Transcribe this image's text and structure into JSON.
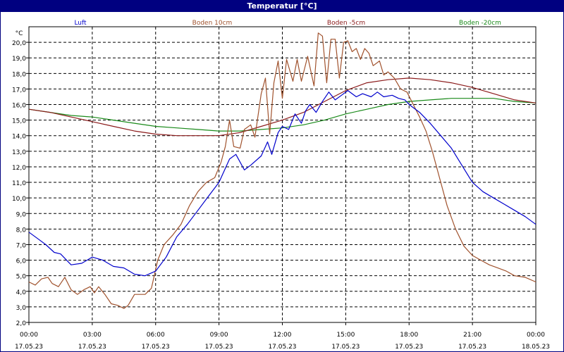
{
  "window": {
    "title": "Temperatur [°C]"
  },
  "chart_data": {
    "type": "line",
    "title": "Temperatur [°C]",
    "y_unit": "°C",
    "ylim": [
      2.0,
      21.0
    ],
    "y_ticks": [
      "2,0",
      "3,0",
      "4,0",
      "5,0",
      "6,0",
      "7,0",
      "8,0",
      "9,0",
      "10,0",
      "11,0",
      "12,0",
      "13,0",
      "14,0",
      "15,0",
      "16,0",
      "17,0",
      "18,0",
      "19,0",
      "20,0"
    ],
    "xlim": [
      0,
      24
    ],
    "x_ticks": [
      {
        "time": "00:00",
        "date": "17.05.23"
      },
      {
        "time": "03:00",
        "date": "17.05.23"
      },
      {
        "time": "06:00",
        "date": "17.05.23"
      },
      {
        "time": "09:00",
        "date": "17.05.23"
      },
      {
        "time": "12:00",
        "date": "17.05.23"
      },
      {
        "time": "15:00",
        "date": "17.05.23"
      },
      {
        "time": "18:00",
        "date": "17.05.23"
      },
      {
        "time": "21:00",
        "date": "17.05.23"
      },
      {
        "time": "00:00",
        "date": "18.05.23"
      }
    ],
    "grid": true,
    "legend_position": "top",
    "series": [
      {
        "name": "Luft",
        "color": "#0000cc",
        "points": [
          [
            0,
            7.8
          ],
          [
            0.5,
            7.3
          ],
          [
            0.8,
            7.0
          ],
          [
            1.2,
            6.5
          ],
          [
            1.5,
            6.4
          ],
          [
            2.0,
            5.7
          ],
          [
            2.5,
            5.8
          ],
          [
            3.0,
            6.2
          ],
          [
            3.5,
            6.0
          ],
          [
            4.0,
            5.6
          ],
          [
            4.5,
            5.5
          ],
          [
            5.0,
            5.1
          ],
          [
            5.5,
            5.0
          ],
          [
            6.0,
            5.3
          ],
          [
            6.5,
            6.2
          ],
          [
            7.0,
            7.5
          ],
          [
            7.5,
            8.3
          ],
          [
            8.0,
            9.2
          ],
          [
            8.5,
            10.1
          ],
          [
            9.0,
            11.0
          ],
          [
            9.5,
            12.5
          ],
          [
            9.8,
            12.8
          ],
          [
            10.2,
            11.8
          ],
          [
            10.5,
            12.1
          ],
          [
            11.0,
            12.7
          ],
          [
            11.3,
            13.6
          ],
          [
            11.5,
            12.8
          ],
          [
            11.8,
            14.2
          ],
          [
            12.0,
            14.6
          ],
          [
            12.3,
            14.4
          ],
          [
            12.6,
            15.4
          ],
          [
            12.9,
            14.8
          ],
          [
            13.1,
            15.6
          ],
          [
            13.3,
            16.0
          ],
          [
            13.6,
            15.5
          ],
          [
            13.9,
            16.2
          ],
          [
            14.2,
            16.8
          ],
          [
            14.5,
            16.3
          ],
          [
            14.8,
            16.6
          ],
          [
            15.1,
            16.9
          ],
          [
            15.5,
            16.5
          ],
          [
            15.8,
            16.7
          ],
          [
            16.2,
            16.5
          ],
          [
            16.5,
            16.8
          ],
          [
            16.8,
            16.5
          ],
          [
            17.2,
            16.6
          ],
          [
            17.5,
            16.4
          ],
          [
            17.8,
            16.3
          ],
          [
            18.0,
            16.0
          ],
          [
            18.5,
            15.5
          ],
          [
            19.0,
            14.8
          ],
          [
            19.5,
            14.0
          ],
          [
            20.0,
            13.2
          ],
          [
            20.5,
            12.1
          ],
          [
            21.0,
            11.0
          ],
          [
            21.5,
            10.4
          ],
          [
            22.0,
            10.0
          ],
          [
            22.5,
            9.6
          ],
          [
            23.0,
            9.2
          ],
          [
            23.5,
            8.8
          ],
          [
            24.0,
            8.3
          ]
        ]
      },
      {
        "name": "Boden 10cm",
        "color": "#a0522d",
        "points": [
          [
            0,
            4.6
          ],
          [
            0.3,
            4.4
          ],
          [
            0.6,
            4.8
          ],
          [
            0.9,
            4.9
          ],
          [
            1.1,
            4.5
          ],
          [
            1.4,
            4.3
          ],
          [
            1.7,
            4.9
          ],
          [
            2.0,
            4.1
          ],
          [
            2.3,
            3.8
          ],
          [
            2.6,
            4.1
          ],
          [
            2.9,
            4.3
          ],
          [
            3.1,
            3.9
          ],
          [
            3.3,
            4.3
          ],
          [
            3.6,
            3.8
          ],
          [
            3.9,
            3.2
          ],
          [
            4.2,
            3.1
          ],
          [
            4.5,
            2.9
          ],
          [
            4.7,
            3.1
          ],
          [
            5.0,
            3.8
          ],
          [
            5.5,
            3.8
          ],
          [
            5.8,
            4.2
          ],
          [
            6.1,
            6.0
          ],
          [
            6.4,
            7.0
          ],
          [
            6.8,
            7.6
          ],
          [
            7.2,
            8.3
          ],
          [
            7.6,
            9.5
          ],
          [
            8.0,
            10.4
          ],
          [
            8.4,
            11.0
          ],
          [
            8.8,
            11.3
          ],
          [
            9.1,
            12.3
          ],
          [
            9.3,
            13.3
          ],
          [
            9.5,
            15.0
          ],
          [
            9.7,
            13.3
          ],
          [
            10.0,
            13.2
          ],
          [
            10.2,
            14.4
          ],
          [
            10.5,
            14.7
          ],
          [
            10.7,
            13.9
          ],
          [
            11.0,
            16.7
          ],
          [
            11.2,
            17.7
          ],
          [
            11.4,
            14.1
          ],
          [
            11.6,
            17.4
          ],
          [
            11.8,
            18.8
          ],
          [
            12.0,
            16.4
          ],
          [
            12.2,
            18.9
          ],
          [
            12.5,
            17.5
          ],
          [
            12.7,
            18.9
          ],
          [
            12.9,
            17.5
          ],
          [
            13.2,
            19.1
          ],
          [
            13.5,
            17.2
          ],
          [
            13.7,
            20.6
          ],
          [
            13.9,
            20.4
          ],
          [
            14.1,
            17.4
          ],
          [
            14.3,
            20.2
          ],
          [
            14.5,
            20.2
          ],
          [
            14.7,
            17.7
          ],
          [
            14.9,
            20.0
          ],
          [
            15.1,
            20.1
          ],
          [
            15.3,
            19.4
          ],
          [
            15.5,
            19.6
          ],
          [
            15.7,
            18.9
          ],
          [
            15.9,
            19.6
          ],
          [
            16.1,
            19.3
          ],
          [
            16.3,
            18.5
          ],
          [
            16.6,
            18.8
          ],
          [
            16.8,
            17.9
          ],
          [
            17.0,
            18.1
          ],
          [
            17.3,
            17.7
          ],
          [
            17.6,
            17.0
          ],
          [
            17.9,
            16.8
          ],
          [
            18.2,
            16.0
          ],
          [
            18.5,
            15.2
          ],
          [
            18.8,
            14.3
          ],
          [
            19.1,
            13.0
          ],
          [
            19.4,
            11.5
          ],
          [
            19.8,
            9.5
          ],
          [
            20.2,
            8.0
          ],
          [
            20.6,
            6.9
          ],
          [
            21.0,
            6.3
          ],
          [
            21.4,
            6.0
          ],
          [
            21.8,
            5.7
          ],
          [
            22.2,
            5.5
          ],
          [
            22.6,
            5.3
          ],
          [
            23.0,
            5.0
          ],
          [
            23.5,
            4.9
          ],
          [
            24.0,
            4.6
          ]
        ]
      },
      {
        "name": "Boden -5cm",
        "color": "#8b1a1a",
        "points": [
          [
            0,
            15.7
          ],
          [
            1,
            15.5
          ],
          [
            2,
            15.2
          ],
          [
            3,
            14.9
          ],
          [
            4,
            14.6
          ],
          [
            5,
            14.3
          ],
          [
            6,
            14.1
          ],
          [
            7,
            14.0
          ],
          [
            8,
            14.0
          ],
          [
            9,
            14.0
          ],
          [
            10,
            14.2
          ],
          [
            11,
            14.6
          ],
          [
            12,
            15.0
          ],
          [
            13,
            15.5
          ],
          [
            14,
            16.2
          ],
          [
            15,
            16.9
          ],
          [
            16,
            17.4
          ],
          [
            17,
            17.6
          ],
          [
            18,
            17.7
          ],
          [
            19,
            17.6
          ],
          [
            20,
            17.4
          ],
          [
            21,
            17.1
          ],
          [
            22,
            16.7
          ],
          [
            23,
            16.3
          ],
          [
            24,
            16.1
          ]
        ]
      },
      {
        "name": "Boden -20cm",
        "color": "#1a8a1a",
        "points": [
          [
            0,
            15.7
          ],
          [
            1,
            15.5
          ],
          [
            2,
            15.3
          ],
          [
            3,
            15.2
          ],
          [
            4,
            15.0
          ],
          [
            5,
            14.8
          ],
          [
            6,
            14.6
          ],
          [
            7,
            14.5
          ],
          [
            8,
            14.4
          ],
          [
            9,
            14.3
          ],
          [
            10,
            14.3
          ],
          [
            11,
            14.4
          ],
          [
            12,
            14.5
          ],
          [
            13,
            14.7
          ],
          [
            14,
            15.0
          ],
          [
            15,
            15.4
          ],
          [
            16,
            15.7
          ],
          [
            17,
            16.0
          ],
          [
            18,
            16.2
          ],
          [
            19,
            16.3
          ],
          [
            20,
            16.4
          ],
          [
            21,
            16.4
          ],
          [
            22,
            16.4
          ],
          [
            23,
            16.2
          ],
          [
            24,
            16.1
          ]
        ]
      }
    ]
  }
}
